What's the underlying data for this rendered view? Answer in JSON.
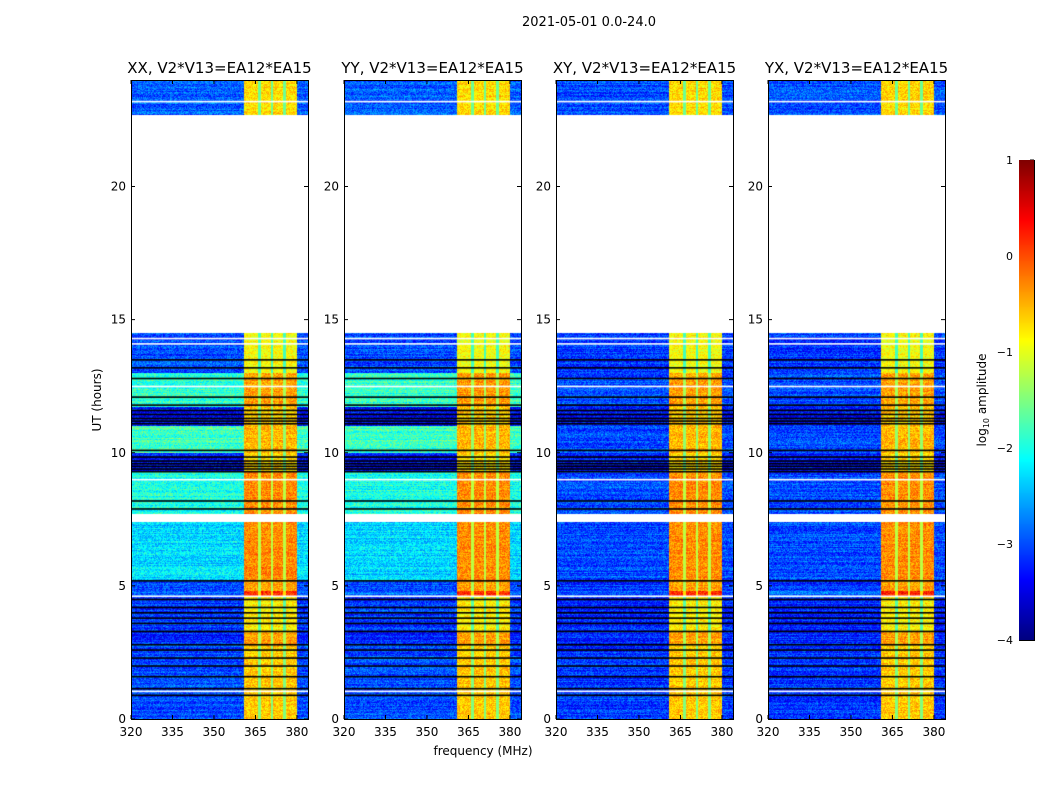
{
  "chart_data": {
    "type": "heatmap",
    "suptitle": "2021-05-01 0.0-24.0",
    "xlabel": "frequency (MHz)",
    "ylabel": "UT (hours)",
    "xlim": [
      320,
      384
    ],
    "ylim": [
      0,
      24
    ],
    "xticks": [
      320,
      335,
      350,
      365,
      380
    ],
    "yticks": [
      0,
      5,
      10,
      15,
      20
    ],
    "panels": [
      {
        "title": "XX, V2*V13=EA12*EA15",
        "kind": "parallel"
      },
      {
        "title": "YY, V2*V13=EA12*EA15",
        "kind": "parallel"
      },
      {
        "title": "XY, V2*V13=EA12*EA15",
        "kind": "cross"
      },
      {
        "title": "YX, V2*V13=EA12*EA15",
        "kind": "cross"
      }
    ],
    "colorbar": {
      "label": "log10 amplitude",
      "label_main": "log",
      "label_sub": "10",
      "label_rest": " amplitude",
      "range": [
        -4,
        1
      ],
      "ticks": [
        1,
        0,
        -1,
        -2,
        -3,
        -4
      ],
      "tick_labels": [
        "1",
        "0",
        "−1",
        "−2",
        "−3",
        "−4"
      ],
      "colormap": "jet"
    },
    "bright_band_mhz": [
      361,
      380
    ],
    "band_gaps_mhz": [
      366.5,
      371,
      375.5
    ],
    "segments_hours": [
      {
        "start": 0.0,
        "end": 2.8,
        "parallel": -3.0,
        "cross": -3.1,
        "band": -0.6
      },
      {
        "start": 2.8,
        "end": 3.3,
        "parallel": -3.2,
        "cross": -3.2,
        "band": -0.4
      },
      {
        "start": 3.3,
        "end": 4.6,
        "parallel": -3.1,
        "cross": -3.2,
        "band": -0.8
      },
      {
        "start": 4.6,
        "end": 4.8,
        "parallel": -2.8,
        "cross": -2.9,
        "band": 0.2
      },
      {
        "start": 4.8,
        "end": 5.2,
        "parallel": -3.0,
        "cross": -3.1,
        "band": -0.4
      },
      {
        "start": 5.2,
        "end": 7.4,
        "parallel": -2.3,
        "cross": -3.0,
        "band": -0.3
      },
      {
        "start": 7.7,
        "end": 9.3,
        "parallel": -2.0,
        "cross": -3.0,
        "band": -0.3
      },
      {
        "start": 9.3,
        "end": 10.0,
        "parallel": -3.3,
        "cross": -3.3,
        "band": -0.7
      },
      {
        "start": 10.0,
        "end": 11.0,
        "parallel": -1.8,
        "cross": -3.0,
        "band": -0.5
      },
      {
        "start": 11.0,
        "end": 11.7,
        "parallel": -3.3,
        "cross": -3.3,
        "band": -0.6
      },
      {
        "start": 11.7,
        "end": 13.0,
        "parallel": -1.9,
        "cross": -3.0,
        "band": -0.4
      },
      {
        "start": 13.0,
        "end": 14.5,
        "parallel": -3.0,
        "cross": -3.1,
        "band": -0.9
      },
      {
        "start": 22.7,
        "end": 24.0,
        "parallel": -2.9,
        "cross": -3.0,
        "band": -0.7
      }
    ],
    "flagged_lines_hours": [
      0.9,
      1.15,
      1.6,
      2.0,
      2.3,
      2.6,
      2.8,
      3.3,
      3.6,
      3.8,
      4.0,
      4.2,
      4.5,
      5.2,
      7.9,
      8.2,
      9.3,
      9.4,
      9.5,
      9.6,
      9.7,
      9.85,
      10.1,
      11.1,
      11.2,
      11.3,
      11.45,
      11.6,
      11.8,
      12.1,
      12.8,
      13.2,
      13.5
    ],
    "gap_lines_hours": [
      1.05,
      4.62,
      7.5,
      7.6,
      9.0,
      12.5,
      14.1,
      14.3,
      23.2
    ]
  }
}
